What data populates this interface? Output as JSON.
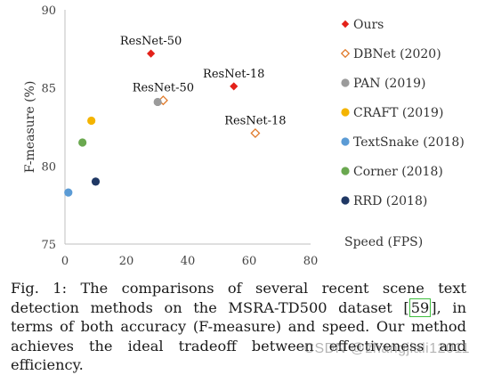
{
  "chart_data": {
    "type": "scatter",
    "xlabel": "Speed (FPS)",
    "ylabel": "F-measure (%)",
    "xlim": [
      0,
      80
    ],
    "ylim": [
      75,
      90
    ],
    "xticks": [
      0,
      20,
      40,
      60,
      80
    ],
    "yticks": [
      75,
      80,
      85,
      90
    ],
    "grid": false,
    "legend_position": "right",
    "series": [
      {
        "name": "Ours",
        "marker": "diamond-filled",
        "color": "#e32119",
        "points": [
          {
            "x": 28,
            "y": 87.2,
            "label": "ResNet-50"
          },
          {
            "x": 55,
            "y": 85.1,
            "label": "ResNet-18"
          }
        ]
      },
      {
        "name": "DBNet (2020)",
        "marker": "diamond-open",
        "color": "#e07a2a",
        "points": [
          {
            "x": 32,
            "y": 84.2,
            "label": "ResNet-50"
          },
          {
            "x": 62,
            "y": 82.1,
            "label": "ResNet-18"
          }
        ]
      },
      {
        "name": "PAN (2019)",
        "marker": "circle",
        "color": "#9b9b9b",
        "points": [
          {
            "x": 30.2,
            "y": 84.1
          }
        ]
      },
      {
        "name": "CRAFT (2019)",
        "marker": "circle",
        "color": "#f4b400",
        "points": [
          {
            "x": 8.6,
            "y": 82.9
          }
        ]
      },
      {
        "name": "TextSnake (2018)",
        "marker": "circle",
        "color": "#5b9bd5",
        "points": [
          {
            "x": 1.1,
            "y": 78.3
          }
        ]
      },
      {
        "name": "Corner (2018)",
        "marker": "circle",
        "color": "#6aa84f",
        "points": [
          {
            "x": 5.7,
            "y": 81.5
          }
        ]
      },
      {
        "name": "RRD (2018)",
        "marker": "circle",
        "color": "#1f3864",
        "points": [
          {
            "x": 10,
            "y": 79
          }
        ]
      }
    ]
  },
  "caption": {
    "part1": "Fig. 1: The comparisons of several recent scene text detection methods on the MSRA-TD500 dataset [",
    "ref": "59",
    "part2": "], in terms of both accuracy (F-measure) and speed. Our method achieves the ideal tradeoff between effectiveness and efficiency."
  },
  "watermark": "CSDN @zhangjiali12011"
}
